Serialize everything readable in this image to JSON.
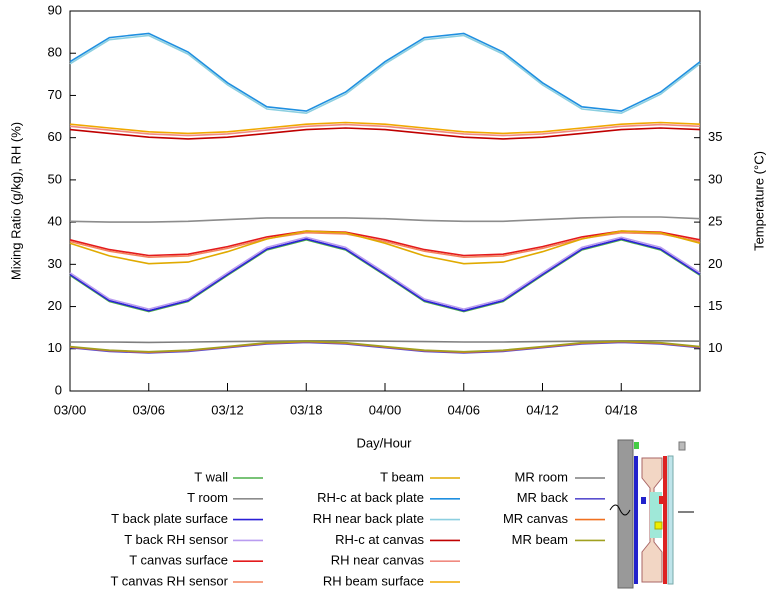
{
  "chart_data": {
    "type": "line",
    "xlabel": "Day/Hour",
    "ylabel": "Mixing Ratio (g/kg), RH (%)",
    "y2label": "Temperature (°C)",
    "x": [
      0,
      3,
      6,
      9,
      12,
      15,
      18,
      21,
      24,
      27,
      30,
      33,
      36,
      39,
      42,
      45,
      48
    ],
    "xlim": [
      0,
      48
    ],
    "xticks": [
      {
        "value": 0,
        "label": "03/00"
      },
      {
        "value": 6,
        "label": "03/06"
      },
      {
        "value": 12,
        "label": "03/12"
      },
      {
        "value": 18,
        "label": "03/18"
      },
      {
        "value": 24,
        "label": "04/00"
      },
      {
        "value": 30,
        "label": "04/06"
      },
      {
        "value": 36,
        "label": "04/12"
      },
      {
        "value": 42,
        "label": "04/18"
      }
    ],
    "ylim": [
      0,
      90
    ],
    "yticks": [
      0,
      10,
      20,
      30,
      40,
      50,
      60,
      70,
      80,
      90
    ],
    "y2lim": [
      5,
      50
    ],
    "y2ticks": [
      10,
      15,
      20,
      25,
      30,
      35
    ],
    "series": [
      {
        "name": "T wall",
        "color": "#4daf4a",
        "axis": "y2",
        "values": [
          18.7,
          15.6,
          14.4,
          15.6,
          18.7,
          21.7,
          22.9,
          21.7,
          18.7,
          15.6,
          14.4,
          15.6,
          18.7,
          21.7,
          22.9,
          21.7,
          18.7
        ]
      },
      {
        "name": "T room",
        "color": "#8c8c8c",
        "axis": "y2",
        "values": [
          25.1,
          25.0,
          25.0,
          25.1,
          25.3,
          25.5,
          25.5,
          25.5,
          25.4,
          25.2,
          25.1,
          25.1,
          25.3,
          25.5,
          25.6,
          25.6,
          25.4
        ]
      },
      {
        "name": "T back plate surface",
        "color": "#2a1fd6",
        "axis": "y2",
        "values": [
          18.8,
          15.7,
          14.5,
          15.7,
          18.8,
          21.8,
          23.0,
          21.8,
          18.8,
          15.7,
          14.5,
          15.7,
          18.8,
          21.8,
          23.0,
          21.8,
          18.8
        ]
      },
      {
        "name": "T back RH sensor",
        "color": "#b99cf0",
        "axis": "y2",
        "values": [
          19.0,
          15.9,
          14.7,
          15.9,
          19.0,
          22.0,
          23.2,
          22.0,
          19.0,
          15.9,
          14.7,
          15.9,
          19.0,
          22.0,
          23.2,
          22.0,
          19.0
        ]
      },
      {
        "name": "T canvas surface",
        "color": "#e31a1c",
        "axis": "y2",
        "values": [
          22.9,
          21.75,
          21.05,
          21.2,
          22.1,
          23.25,
          23.95,
          23.8,
          22.9,
          21.75,
          21.05,
          21.2,
          22.1,
          23.25,
          23.95,
          23.8,
          22.9
        ]
      },
      {
        "name": "T canvas RH sensor",
        "color": "#f4845f",
        "axis": "y2",
        "values": [
          22.7,
          21.55,
          20.85,
          21.0,
          21.9,
          23.05,
          23.75,
          23.6,
          22.7,
          21.55,
          20.85,
          21.0,
          21.9,
          23.05,
          23.75,
          23.6,
          22.7
        ]
      },
      {
        "name": "T beam",
        "color": "#e0aa00",
        "axis": "y2",
        "values": [
          22.5,
          21.0,
          20.07,
          20.27,
          21.5,
          23.0,
          23.93,
          23.73,
          22.5,
          21.0,
          20.07,
          20.27,
          21.5,
          23.0,
          23.93,
          23.73,
          22.5
        ]
      },
      {
        "name": "RH-c at back plate",
        "color": "#1f8fe0",
        "values": [
          78.0,
          83.7,
          84.7,
          80.3,
          73.0,
          67.3,
          66.3,
          70.8,
          78.0,
          83.7,
          84.7,
          80.3,
          73.0,
          67.3,
          66.3,
          70.8,
          78.0
        ]
      },
      {
        "name": "RH near back plate",
        "color": "#8ccfe0",
        "values": [
          77.5,
          83.2,
          84.2,
          79.8,
          72.5,
          66.8,
          65.8,
          70.3,
          77.5,
          83.2,
          84.2,
          79.8,
          72.5,
          66.8,
          65.8,
          70.3,
          77.5
        ]
      },
      {
        "name": "RH-c at canvas",
        "color": "#c00000",
        "values": [
          61.9,
          61.0,
          60.1,
          59.7,
          60.1,
          61.0,
          61.9,
          62.3,
          61.9,
          61.0,
          60.1,
          59.7,
          60.1,
          61.0,
          61.9,
          62.3,
          61.9
        ]
      },
      {
        "name": "RH near canvas",
        "color": "#f08a80",
        "values": [
          62.7,
          61.8,
          60.9,
          60.5,
          60.9,
          61.8,
          62.7,
          63.1,
          62.7,
          61.8,
          60.9,
          60.5,
          60.9,
          61.8,
          62.7,
          63.1,
          62.7
        ]
      },
      {
        "name": "RH beam surface",
        "color": "#f0a800",
        "values": [
          63.2,
          62.3,
          61.4,
          61.0,
          61.4,
          62.3,
          63.2,
          63.6,
          63.2,
          62.3,
          61.4,
          61.0,
          61.4,
          62.3,
          63.2,
          63.6,
          63.2
        ]
      },
      {
        "name": "MR room",
        "color": "#7f7f7f",
        "values": [
          11.6,
          11.6,
          11.5,
          11.6,
          11.7,
          11.8,
          11.9,
          11.9,
          11.8,
          11.7,
          11.6,
          11.6,
          11.7,
          11.8,
          11.9,
          11.9,
          11.8
        ]
      },
      {
        "name": "MR back",
        "color": "#5a4fcf",
        "values": [
          10.25,
          9.37,
          9.0,
          9.37,
          10.25,
          11.13,
          11.5,
          11.13,
          10.25,
          9.37,
          9.0,
          9.37,
          10.25,
          11.13,
          11.5,
          11.13,
          10.25
        ]
      },
      {
        "name": "MR canvas",
        "color": "#f07020",
        "values": [
          10.45,
          9.57,
          9.2,
          9.57,
          10.45,
          11.33,
          11.7,
          11.33,
          10.45,
          9.57,
          9.2,
          9.57,
          10.45,
          11.33,
          11.7,
          11.33,
          10.45
        ]
      },
      {
        "name": "MR beam",
        "color": "#a0a020",
        "values": [
          10.55,
          9.67,
          9.3,
          9.67,
          10.55,
          11.43,
          11.8,
          11.43,
          10.55,
          9.67,
          9.3,
          9.67,
          10.55,
          11.43,
          11.8,
          11.43,
          10.55
        ]
      }
    ]
  }
}
